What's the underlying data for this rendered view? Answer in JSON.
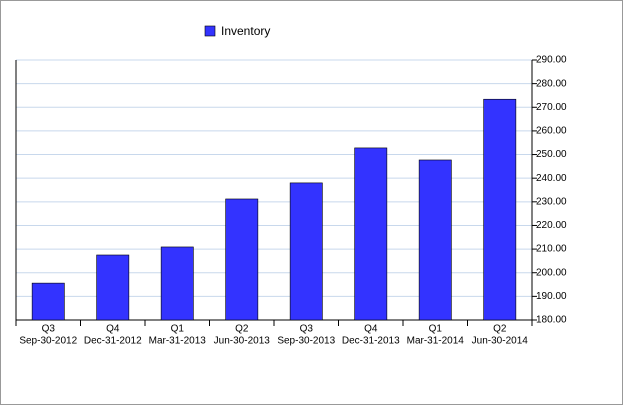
{
  "chart_data": {
    "type": "bar",
    "legend_position": "top",
    "categories": [
      [
        "Q3",
        "Sep-30-2012"
      ],
      [
        "Q4",
        "Dec-31-2012"
      ],
      [
        "Q1",
        "Mar-31-2013"
      ],
      [
        "Q2",
        "Jun-30-2013"
      ],
      [
        "Q3",
        "Sep-30-2013"
      ],
      [
        "Q4",
        "Dec-31-2013"
      ],
      [
        "Q1",
        "Mar-31-2014"
      ],
      [
        "Q2",
        "Jun-30-2014"
      ]
    ],
    "series": [
      {
        "name": "Inventory",
        "color": "#3333ff",
        "values": [
          195.6,
          207.5,
          210.9,
          231.2,
          238.0,
          252.8,
          247.7,
          273.4
        ]
      }
    ],
    "ylim": [
      180,
      290
    ],
    "yticks": [
      {
        "value": 180,
        "label": "180.00"
      },
      {
        "value": 190,
        "label": "190.00"
      },
      {
        "value": 200,
        "label": "200.00"
      },
      {
        "value": 210,
        "label": "210.00"
      },
      {
        "value": 220,
        "label": "220.00"
      },
      {
        "value": 230,
        "label": "230.00"
      },
      {
        "value": 240,
        "label": "240.00"
      },
      {
        "value": 250,
        "label": "250.00"
      },
      {
        "value": 260,
        "label": "260.00"
      },
      {
        "value": 270,
        "label": "270.00"
      },
      {
        "value": 280,
        "label": "280.00"
      },
      {
        "value": 290,
        "label": "290.00"
      }
    ],
    "y_axis_side": "right",
    "grid": true
  }
}
